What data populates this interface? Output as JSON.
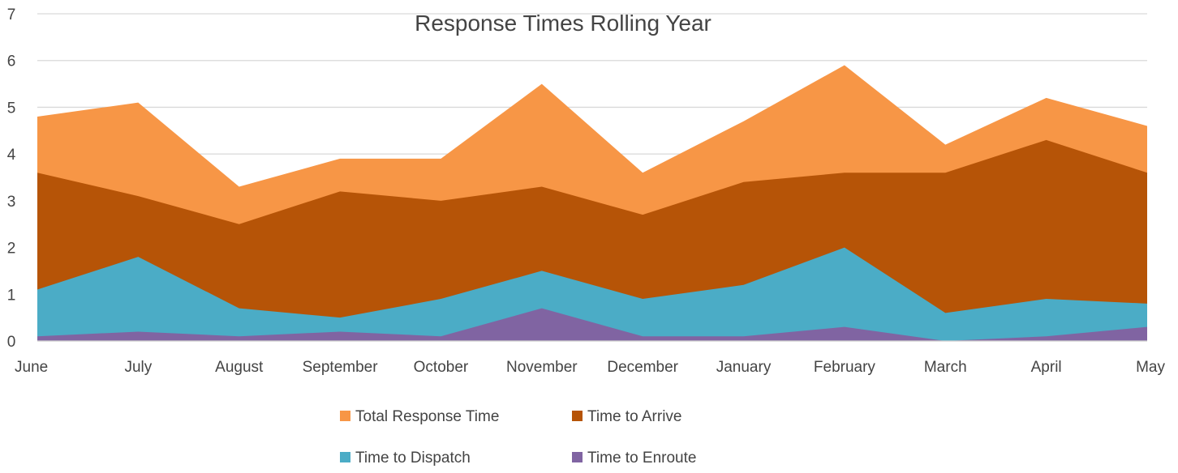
{
  "chart_data": {
    "type": "area",
    "title": "Response Times Rolling Year",
    "xlabel": "",
    "ylabel": "",
    "ylim": [
      0,
      7
    ],
    "yticks": [
      "0",
      "1",
      "2",
      "3",
      "4",
      "5",
      "6",
      "7"
    ],
    "categories": [
      "June",
      "July",
      "August",
      "September",
      "October",
      "November",
      "December",
      "January",
      "February",
      "March",
      "April",
      "May"
    ],
    "grid": true,
    "legend_position": "bottom",
    "series": [
      {
        "name": "Total Response Time",
        "color": "#F79646",
        "values": [
          4.8,
          5.1,
          3.3,
          3.9,
          3.9,
          5.5,
          3.6,
          4.7,
          5.9,
          4.2,
          5.2,
          4.6
        ]
      },
      {
        "name": "Time to Arrive",
        "color": "#B65407",
        "values": [
          3.6,
          3.1,
          2.5,
          3.2,
          3.0,
          3.3,
          2.7,
          3.4,
          3.6,
          3.6,
          4.3,
          3.6
        ]
      },
      {
        "name": "Time to Dispatch",
        "color": "#4BACC6",
        "values": [
          1.1,
          1.8,
          0.7,
          0.5,
          0.9,
          1.5,
          0.9,
          1.2,
          2.0,
          0.6,
          0.9,
          0.8
        ]
      },
      {
        "name": "Time to Enroute",
        "color": "#8064A2",
        "values": [
          0.1,
          0.2,
          0.1,
          0.2,
          0.1,
          0.7,
          0.1,
          0.1,
          0.3,
          0.0,
          0.1,
          0.3
        ]
      }
    ]
  }
}
